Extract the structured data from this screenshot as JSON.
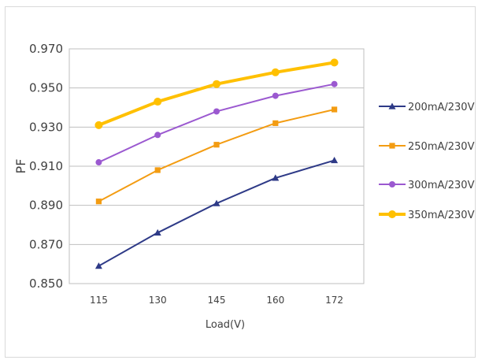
{
  "chart_data": {
    "type": "line",
    "title": "",
    "xlabel": "Load(V)",
    "ylabel": "PF",
    "categories": [
      "115",
      "130",
      "145",
      "160",
      "172"
    ],
    "ylim": [
      0.85,
      0.97
    ],
    "yticks": [
      "0.970",
      "0.950",
      "0.930",
      "0.910",
      "0.890",
      "0.870",
      "0.850"
    ],
    "ytick_values": [
      0.97,
      0.95,
      0.93,
      0.91,
      0.89,
      0.87,
      0.85
    ],
    "grid": true,
    "legend_position": "right",
    "series": [
      {
        "name": "200mA/230V",
        "color": "#2e3a87",
        "marker": "triangle",
        "values": [
          0.859,
          0.876,
          0.891,
          0.904,
          0.913
        ]
      },
      {
        "name": "250mA/230V",
        "color": "#f39c12",
        "marker": "square",
        "values": [
          0.892,
          0.908,
          0.921,
          0.932,
          0.939
        ]
      },
      {
        "name": "300mA/230V",
        "color": "#9b59d0",
        "marker": "circle",
        "values": [
          0.912,
          0.926,
          0.938,
          0.946,
          0.952
        ]
      },
      {
        "name": "350mA/230V",
        "color": "#ffc000",
        "marker": "circle",
        "values": [
          0.931,
          0.943,
          0.952,
          0.958,
          0.963
        ]
      }
    ]
  }
}
